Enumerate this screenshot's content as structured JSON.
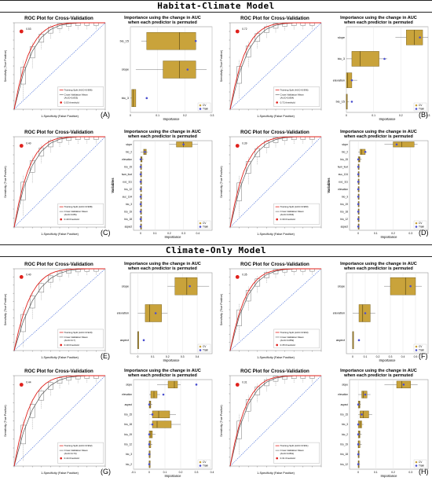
{
  "banners": {
    "habitat": "Habitat-Climate Model",
    "climate": "Climate-Only Model"
  },
  "panels": [
    {
      "id": "A",
      "letter": "(A)",
      "roc": {
        "title": "ROC Plot for Cross-Validation",
        "xlabel": "1-Specificity (False Positive)",
        "ylabel": "Sensitivity (True Positive)",
        "legend_train": "Training Split (AUC=0.986)",
        "legend_cv": "Cross Validation Mean",
        "legend_cv2": "(AUC=0.833)",
        "threshold": "0.53 threshold",
        "marker": "0.53"
      },
      "imp": {
        "title1": "Importance using the change in AUC",
        "title2": "when each predictor is permuted",
        "xlabel": "Importance",
        "variables": [
          "bio_15",
          "slope",
          "bio_3"
        ],
        "cv": [
          [
            0.04,
            0.06,
            0.18,
            0.24,
            0.22
          ],
          [
            0.02,
            0.12,
            0.18,
            0.24,
            0.28
          ],
          [
            0.0,
            0.005,
            0.01,
            0.02,
            0.02
          ]
        ],
        "train": [
          0.24,
          0.21,
          0.06
        ],
        "xlim": [
          0,
          0.3
        ],
        "ticks": [
          0.0,
          0.1,
          0.2,
          0.3
        ],
        "show_var_label": false,
        "legend": [
          "CV",
          "Train"
        ]
      }
    },
    {
      "id": "B",
      "letter": "(B)",
      "roc": {
        "title": "ROC Plot for Cross-Validation",
        "xlabel": "1-Specificity (False Positive)",
        "ylabel": "Sensitivity (True Positive)",
        "legend_train": "Training Split (AUC=0.996)",
        "legend_cv": "Cross Validation Mean",
        "legend_cv2": "(AUC=0.854)",
        "threshold": "0.72 threshold",
        "marker": "0.72"
      },
      "imp": {
        "title1": "Importance using the change in AUC",
        "title2": "when each predictor is permuted",
        "xlabel": "Importance",
        "variables": [
          "slope",
          "bio_3",
          "elevation",
          "bio_15"
        ],
        "cv": [
          [
            0.18,
            0.22,
            0.25,
            0.28,
            0.3
          ],
          [
            0.0,
            0.02,
            0.05,
            0.12,
            0.15
          ],
          [
            0.0,
            0.0,
            0.005,
            0.02,
            0.04
          ],
          [
            0.0,
            0.0,
            0.0,
            0.0,
            0.01
          ]
        ],
        "train": [
          0.27,
          0.14,
          0.02,
          0.02
        ],
        "xlim": [
          0,
          0.3
        ],
        "ticks": [
          0.0,
          0.1,
          0.2,
          0.3
        ],
        "show_var_label": false,
        "legend": [
          "CV",
          "Train"
        ]
      }
    },
    {
      "id": "C",
      "letter": "(C)",
      "roc": {
        "title": "ROC Plot for Cross-Validation",
        "xlabel": "1-Specificity (False Positive)",
        "ylabel": "Sensitivity (True Positive)",
        "legend_train": "Training Split (AUC=0.998)",
        "legend_cv": "Cross Validation Mean",
        "legend_cv2": "(AUC=0.86)",
        "threshold": "0.40 threshold",
        "marker": "0.40"
      },
      "imp": {
        "title1": "Importance using the change in AUC",
        "title2": "when each predictor is permuted",
        "xlabel": "Importance",
        "variables": [
          "slope",
          "bio_2",
          "elevation",
          "bio_15",
          "hum_foot",
          "euc_111",
          "bio_12",
          "euc_124",
          "bio_3",
          "bio_19",
          "bio_18",
          "aspect"
        ],
        "cv": [
          [
            0.2,
            0.25,
            0.3,
            0.36,
            0.4
          ],
          [
            0.0,
            0.02,
            0.03,
            0.04,
            0.05
          ],
          [
            0.0,
            0.0,
            0.005,
            0.01,
            0.02
          ],
          [
            0.0,
            0.0,
            0.0,
            0.005,
            0.01
          ],
          [
            0.0,
            0.0,
            0.0,
            0.005,
            0.01
          ],
          [
            0.0,
            0.0,
            0.0,
            0.0,
            0.01
          ],
          [
            0.0,
            0.0,
            0.0,
            0.0,
            0.0
          ],
          [
            0.0,
            0.0,
            0.0,
            0.0,
            0.0
          ],
          [
            0.0,
            0.0,
            0.0,
            0.0,
            0.0
          ],
          [
            0.0,
            0.0,
            0.0,
            0.0,
            0.0
          ],
          [
            0.0,
            0.0,
            0.0,
            0.0,
            0.0
          ],
          [
            0.0,
            0.0,
            0.0,
            0.0,
            0.0
          ]
        ],
        "train": [
          0.3,
          0.03,
          0.0,
          0.0,
          0.0,
          0.0,
          0.0,
          0.0,
          0.0,
          0.0,
          0.0,
          0.0
        ],
        "xlim": [
          -0.05,
          0.5
        ],
        "ticks": [
          0.0,
          0.1,
          0.2,
          0.3,
          0.4
        ],
        "show_var_label": true,
        "var_label": "Variables",
        "legend": [
          "CV",
          "Train"
        ]
      }
    },
    {
      "id": "D",
      "letter": "(D)",
      "roc": {
        "title": "ROC Plot for Cross-Validation",
        "xlabel": "1-Specificity (False Positive)",
        "ylabel": "Sensitivity (True Positive)",
        "legend_train": "Training Split (AUC=0.983)",
        "legend_cv": "Cross Validation Mean",
        "legend_cv2": "(AUC=0.834)",
        "threshold": "0.39 threshold",
        "marker": "0.39"
      },
      "imp": {
        "title1": "Importance using the change in AUC",
        "title2": "when each predictor is permuted",
        "xlabel": "Importance",
        "variables": [
          "slope",
          "bio_2",
          "bio_15",
          "hum_foot",
          "euc_124",
          "euc_111",
          "elevation",
          "bio_3",
          "bio_19",
          "bio_18",
          "bio_12",
          "aspect"
        ],
        "cv": [
          [
            0.15,
            0.2,
            0.25,
            0.32,
            0.34
          ],
          [
            0.0,
            0.01,
            0.02,
            0.04,
            0.05
          ],
          [
            0.0,
            0.0,
            0.005,
            0.01,
            0.02
          ],
          [
            0.0,
            0.0,
            0.0,
            0.005,
            0.01
          ],
          [
            0.0,
            0.0,
            0.0,
            0.0,
            0.005
          ],
          [
            0.0,
            0.0,
            0.0,
            0.005,
            0.01
          ],
          [
            0.0,
            0.0,
            0.0,
            0.0,
            0.005
          ],
          [
            0.0,
            0.0,
            0.0,
            0.0,
            0.005
          ],
          [
            0.0,
            0.0,
            0.0,
            0.0,
            0.0
          ],
          [
            0.0,
            0.0,
            0.0,
            0.0,
            0.0
          ],
          [
            0.0,
            0.0,
            0.0,
            0.0,
            0.0
          ],
          [
            0.0,
            0.0,
            0.0,
            0.0,
            0.0
          ]
        ],
        "train": [
          0.22,
          0.04,
          0.0,
          0.0,
          0.0,
          0.0,
          0.0,
          0.0,
          0.0,
          0.0,
          0.0,
          0.0
        ],
        "xlim": [
          -0.05,
          0.4
        ],
        "ticks": [
          0.0,
          0.1,
          0.2,
          0.3
        ],
        "show_var_label": true,
        "var_label": "Variables",
        "legend": [
          "CV",
          "Train"
        ]
      }
    },
    {
      "id": "E",
      "letter": "(E)",
      "roc": {
        "title": "ROC Plot for Cross-Validation",
        "xlabel": "1-Specificity (False Positive)",
        "ylabel": "Sensitivity (True Positive)",
        "legend_train": "Training Split (AUC=0.920)",
        "legend_cv": "Cross Validation Mean",
        "legend_cv2": "(AUC=0.7)",
        "threshold": "0.40 threshold",
        "marker": "0.40"
      },
      "imp": {
        "title1": "Importance using the change in AUC",
        "title2": "when each predictor is permuted",
        "xlabel": "Importance",
        "variables": [
          "slope",
          "elevation",
          "aspect"
        ],
        "cv": [
          [
            0.2,
            0.25,
            0.33,
            0.4,
            0.48
          ],
          [
            0.0,
            0.05,
            0.08,
            0.16,
            0.2
          ],
          [
            0.0,
            0.0,
            0.0,
            0.0,
            0.0
          ]
        ],
        "train": [
          0.35,
          0.12,
          0.04
        ],
        "xlim": [
          -0.05,
          0.5
        ],
        "ticks": [
          0.0,
          0.1,
          0.2,
          0.3,
          0.4
        ],
        "show_var_label": false,
        "legend": [
          "CV",
          "Train"
        ]
      }
    },
    {
      "id": "F",
      "letter": "(F)",
      "roc": {
        "title": "ROC Plot for Cross-Validation",
        "xlabel": "1-Specificity (False Positive)",
        "ylabel": "Sensitivity (True Positive)",
        "legend_train": "Training Split (AUC=0.963)",
        "legend_cv": "Cross Validation Mean",
        "legend_cv2": "(AUC=0.859)",
        "threshold": "0.35 threshold",
        "marker": "0.35"
      },
      "imp": {
        "title1": "Importance using the change in AUC",
        "title2": "when each predictor is permuted",
        "xlabel": "Importance",
        "variables": [
          "slope",
          "elevation",
          "aspect"
        ],
        "cv": [
          [
            0.25,
            0.3,
            0.42,
            0.5,
            0.55
          ],
          [
            0.0,
            0.05,
            0.08,
            0.14,
            0.18
          ],
          [
            0.0,
            0.0,
            0.0,
            0.0,
            0.0
          ]
        ],
        "train": [
          0.46,
          0.1,
          0.05
        ],
        "xlim": [
          -0.05,
          0.6
        ],
        "ticks": [
          0.0,
          0.1,
          0.2,
          0.3,
          0.4,
          0.5
        ],
        "show_var_label": false,
        "legend": [
          "CV",
          "Train"
        ]
      }
    },
    {
      "id": "G",
      "letter": "(G)",
      "roc": {
        "title": "ROC Plot for Cross-Validation",
        "xlabel": "1-Specificity (False Positive)",
        "ylabel": "Sensitivity (True Positive)",
        "legend_train": "Training Split (AUC=0.962)",
        "legend_cv": "Cross Validation Mean",
        "legend_cv2": "(AUC=0.73)",
        "threshold": "0.44 threshold",
        "marker": "0.44"
      },
      "imp": {
        "title1": "Importance using the change in AUC",
        "title2": "when each predictor is permuted",
        "xlabel": "Importance",
        "variables": [
          "slope",
          "elevation",
          "aspect",
          "bio_15",
          "bio_18",
          "bio_19",
          "bio_12",
          "bio_3",
          "bio_2"
        ],
        "cv": [
          [
            0.05,
            0.12,
            0.16,
            0.18,
            0.2
          ],
          [
            0.0,
            0.01,
            0.03,
            0.05,
            0.07
          ],
          [
            0.0,
            0.0,
            0.005,
            0.01,
            0.02
          ],
          [
            0.0,
            0.02,
            0.06,
            0.13,
            0.17
          ],
          [
            0.0,
            0.02,
            0.05,
            0.14,
            0.2
          ],
          [
            0.0,
            0.0,
            0.01,
            0.02,
            0.04
          ],
          [
            0.0,
            0.0,
            0.0,
            0.01,
            0.02
          ],
          [
            0.0,
            0.0,
            0.0,
            0.0,
            0.01
          ],
          [
            0.0,
            0.0,
            0.0,
            0.0,
            0.0
          ]
        ],
        "train": [
          0.3,
          0.09,
          0.0,
          0.02,
          0.02,
          0.0,
          0.0,
          0.0,
          0.0
        ],
        "xlim": [
          -0.1,
          0.4
        ],
        "ticks": [
          -0.1,
          0.0,
          0.1,
          0.2,
          0.3,
          0.4
        ],
        "show_var_label": false,
        "legend": [
          "CV",
          "Train"
        ]
      }
    },
    {
      "id": "H",
      "letter": "(H)",
      "roc": {
        "title": "ROC Plot for Cross-Validation",
        "xlabel": "1-Specificity (False Positive)",
        "ylabel": "Sensitivity (True Positive)",
        "legend_train": "Training Split (AUC=0.961)",
        "legend_cv": "Cross Validation Mean",
        "legend_cv2": "(AUC=0.861)",
        "threshold": "0.31 threshold",
        "marker": "0.31"
      },
      "imp": {
        "title1": "Importance using the change in AUC",
        "title2": "when each predictor is permuted",
        "xlabel": "Importance",
        "variables": [
          "slope",
          "elevation",
          "aspect",
          "bio_15",
          "bio_3",
          "bio_2",
          "bio_19",
          "bio_18",
          "bio_12"
        ],
        "cv": [
          [
            0.15,
            0.22,
            0.25,
            0.3,
            0.34
          ],
          [
            0.0,
            0.02,
            0.03,
            0.05,
            0.07
          ],
          [
            0.0,
            0.0,
            0.005,
            0.01,
            0.015
          ],
          [
            0.0,
            0.01,
            0.03,
            0.06,
            0.08
          ],
          [
            0.0,
            0.0,
            0.01,
            0.02,
            0.03
          ],
          [
            0.0,
            0.0,
            0.005,
            0.01,
            0.02
          ],
          [
            0.0,
            0.0,
            0.0,
            0.01,
            0.02
          ],
          [
            0.0,
            0.0,
            0.0,
            0.005,
            0.01
          ],
          [
            0.0,
            0.0,
            0.0,
            0.0,
            0.01
          ]
        ],
        "train": [
          0.26,
          0.04,
          0.0,
          0.02,
          0.0,
          0.0,
          0.0,
          0.0,
          0.0
        ],
        "xlim": [
          -0.05,
          0.4
        ],
        "ticks": [
          0.0,
          0.1,
          0.2,
          0.3
        ],
        "show_var_label": false,
        "legend": [
          "CV",
          "Train"
        ]
      }
    }
  ],
  "colors": {
    "train": "#e0201b",
    "cv": "#555555",
    "diag": "#4a6fd8",
    "box": "#c9a33b",
    "train_pt": "#4a4fcf",
    "grid": "#e4e4e4"
  },
  "chart_data": {
    "type": "bar",
    "title": "Habitat-Climate Model / Climate-Only Model",
    "charts": [
      {
        "panel": "A",
        "roc_auc_train": 0.986,
        "roc_auc_cv": 0.833,
        "threshold": 0.53,
        "importance_vars": [
          "bio_15",
          "slope",
          "bio_3"
        ],
        "importance_train": [
          0.24,
          0.21,
          0.06
        ]
      },
      {
        "panel": "B",
        "roc_auc_train": 0.996,
        "roc_auc_cv": 0.854,
        "threshold": 0.72,
        "importance_vars": [
          "slope",
          "bio_3",
          "elevation",
          "bio_15"
        ],
        "importance_train": [
          0.27,
          0.14,
          0.02,
          0.02
        ]
      },
      {
        "panel": "C",
        "roc_auc_train": 0.998,
        "roc_auc_cv": 0.86,
        "threshold": 0.4,
        "importance_vars": [
          "slope",
          "bio_2",
          "elevation",
          "bio_15",
          "hum_foot",
          "euc_111",
          "bio_12",
          "euc_124",
          "bio_3",
          "bio_19",
          "bio_18",
          "aspect"
        ]
      },
      {
        "panel": "D",
        "roc_auc_train": 0.983,
        "roc_auc_cv": 0.834,
        "threshold": 0.39,
        "importance_vars": [
          "slope",
          "bio_2",
          "bio_15",
          "hum_foot",
          "euc_124",
          "euc_111",
          "elevation",
          "bio_3",
          "bio_19",
          "bio_18",
          "bio_12",
          "aspect"
        ]
      },
      {
        "panel": "E",
        "roc_auc_train": 0.92,
        "roc_auc_cv": 0.7,
        "threshold": 0.4,
        "importance_vars": [
          "slope",
          "elevation",
          "aspect"
        ]
      },
      {
        "panel": "F",
        "roc_auc_train": 0.963,
        "roc_auc_cv": 0.859,
        "threshold": 0.35,
        "importance_vars": [
          "slope",
          "elevation",
          "aspect"
        ]
      },
      {
        "panel": "G",
        "roc_auc_train": 0.962,
        "roc_auc_cv": 0.73,
        "threshold": 0.44,
        "importance_vars": [
          "slope",
          "elevation",
          "aspect",
          "bio_15",
          "bio_18",
          "bio_19",
          "bio_12",
          "bio_3",
          "bio_2"
        ]
      },
      {
        "panel": "H",
        "roc_auc_train": 0.961,
        "roc_auc_cv": 0.861,
        "threshold": 0.31,
        "importance_vars": [
          "slope",
          "elevation",
          "aspect",
          "bio_15",
          "bio_3",
          "bio_2",
          "bio_19",
          "bio_18",
          "bio_12"
        ]
      }
    ]
  }
}
